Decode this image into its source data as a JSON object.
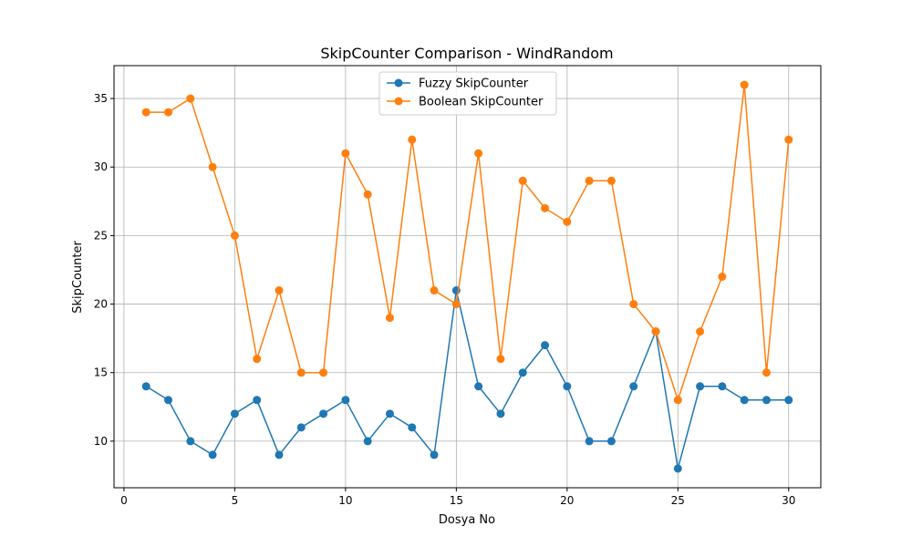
{
  "chart_data": {
    "type": "line",
    "title": "SkipCounter Comparison - WindRandom",
    "xlabel": "Dosya No",
    "ylabel": "SkipCounter",
    "xlim": [
      -0.45,
      31.45
    ],
    "ylim": [
      6.6,
      37.4
    ],
    "xticks": [
      0,
      5,
      10,
      15,
      20,
      25,
      30
    ],
    "yticks": [
      10,
      15,
      20,
      25,
      30,
      35
    ],
    "grid": true,
    "legend_position": "top-center",
    "x": [
      1,
      2,
      3,
      4,
      5,
      6,
      7,
      8,
      9,
      10,
      11,
      12,
      13,
      14,
      15,
      16,
      17,
      18,
      19,
      20,
      21,
      22,
      23,
      24,
      25,
      26,
      27,
      28,
      29,
      30
    ],
    "series": [
      {
        "name": "Fuzzy SkipCounter",
        "color": "#1f77b4",
        "values": [
          14,
          13,
          10,
          9,
          12,
          13,
          9,
          11,
          12,
          13,
          10,
          12,
          11,
          9,
          21,
          14,
          12,
          15,
          17,
          14,
          10,
          10,
          14,
          18,
          8,
          14,
          14,
          13,
          13,
          13
        ]
      },
      {
        "name": "Boolean SkipCounter",
        "color": "#ff7f0e",
        "values": [
          34,
          34,
          35,
          30,
          25,
          16,
          21,
          15,
          15,
          31,
          28,
          19,
          32,
          21,
          20,
          31,
          16,
          29,
          27,
          26,
          29,
          29,
          20,
          18,
          13,
          18,
          22,
          36,
          15,
          32
        ]
      }
    ]
  }
}
